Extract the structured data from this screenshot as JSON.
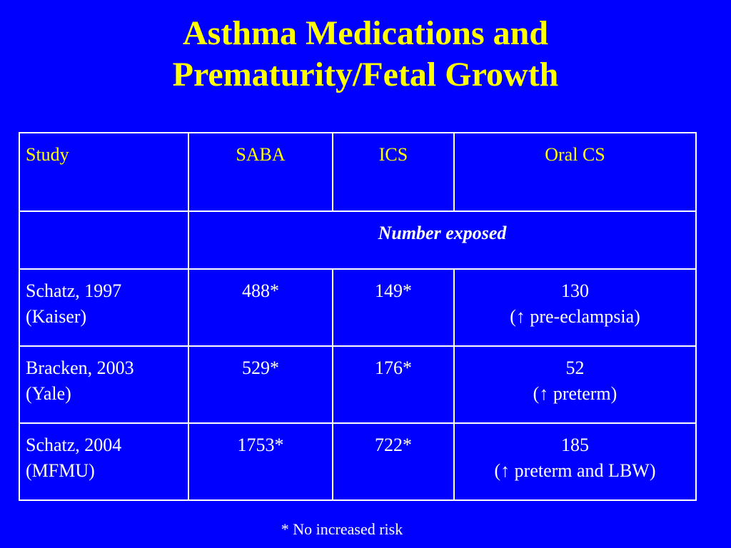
{
  "title": {
    "line1": "Asthma Medications and",
    "line2": "Prematurity/Fetal Growth"
  },
  "table": {
    "headers": [
      "Study",
      "SABA",
      "ICS",
      "Oral CS"
    ],
    "subheader": "Number exposed",
    "rows": [
      {
        "study": [
          "Schatz, 1997",
          "(Kaiser)"
        ],
        "saba": "488*",
        "ics": "149*",
        "oral": [
          "130",
          "(↑ pre-eclampsia)"
        ]
      },
      {
        "study": [
          "Bracken, 2003",
          "(Yale)"
        ],
        "saba": "529*",
        "ics": "176*",
        "oral": [
          "52",
          "(↑ preterm)"
        ]
      },
      {
        "study": [
          "Schatz, 2004",
          "(MFMU)"
        ],
        "saba": "1753*",
        "ics": "722*",
        "oral": [
          "185",
          "(↑ preterm and LBW)"
        ]
      }
    ]
  },
  "footnote": "* No increased risk",
  "colors": {
    "background": "#0000ff",
    "title": "#ffff00",
    "header_text": "#ffff00",
    "body_text": "#ffffff"
  }
}
